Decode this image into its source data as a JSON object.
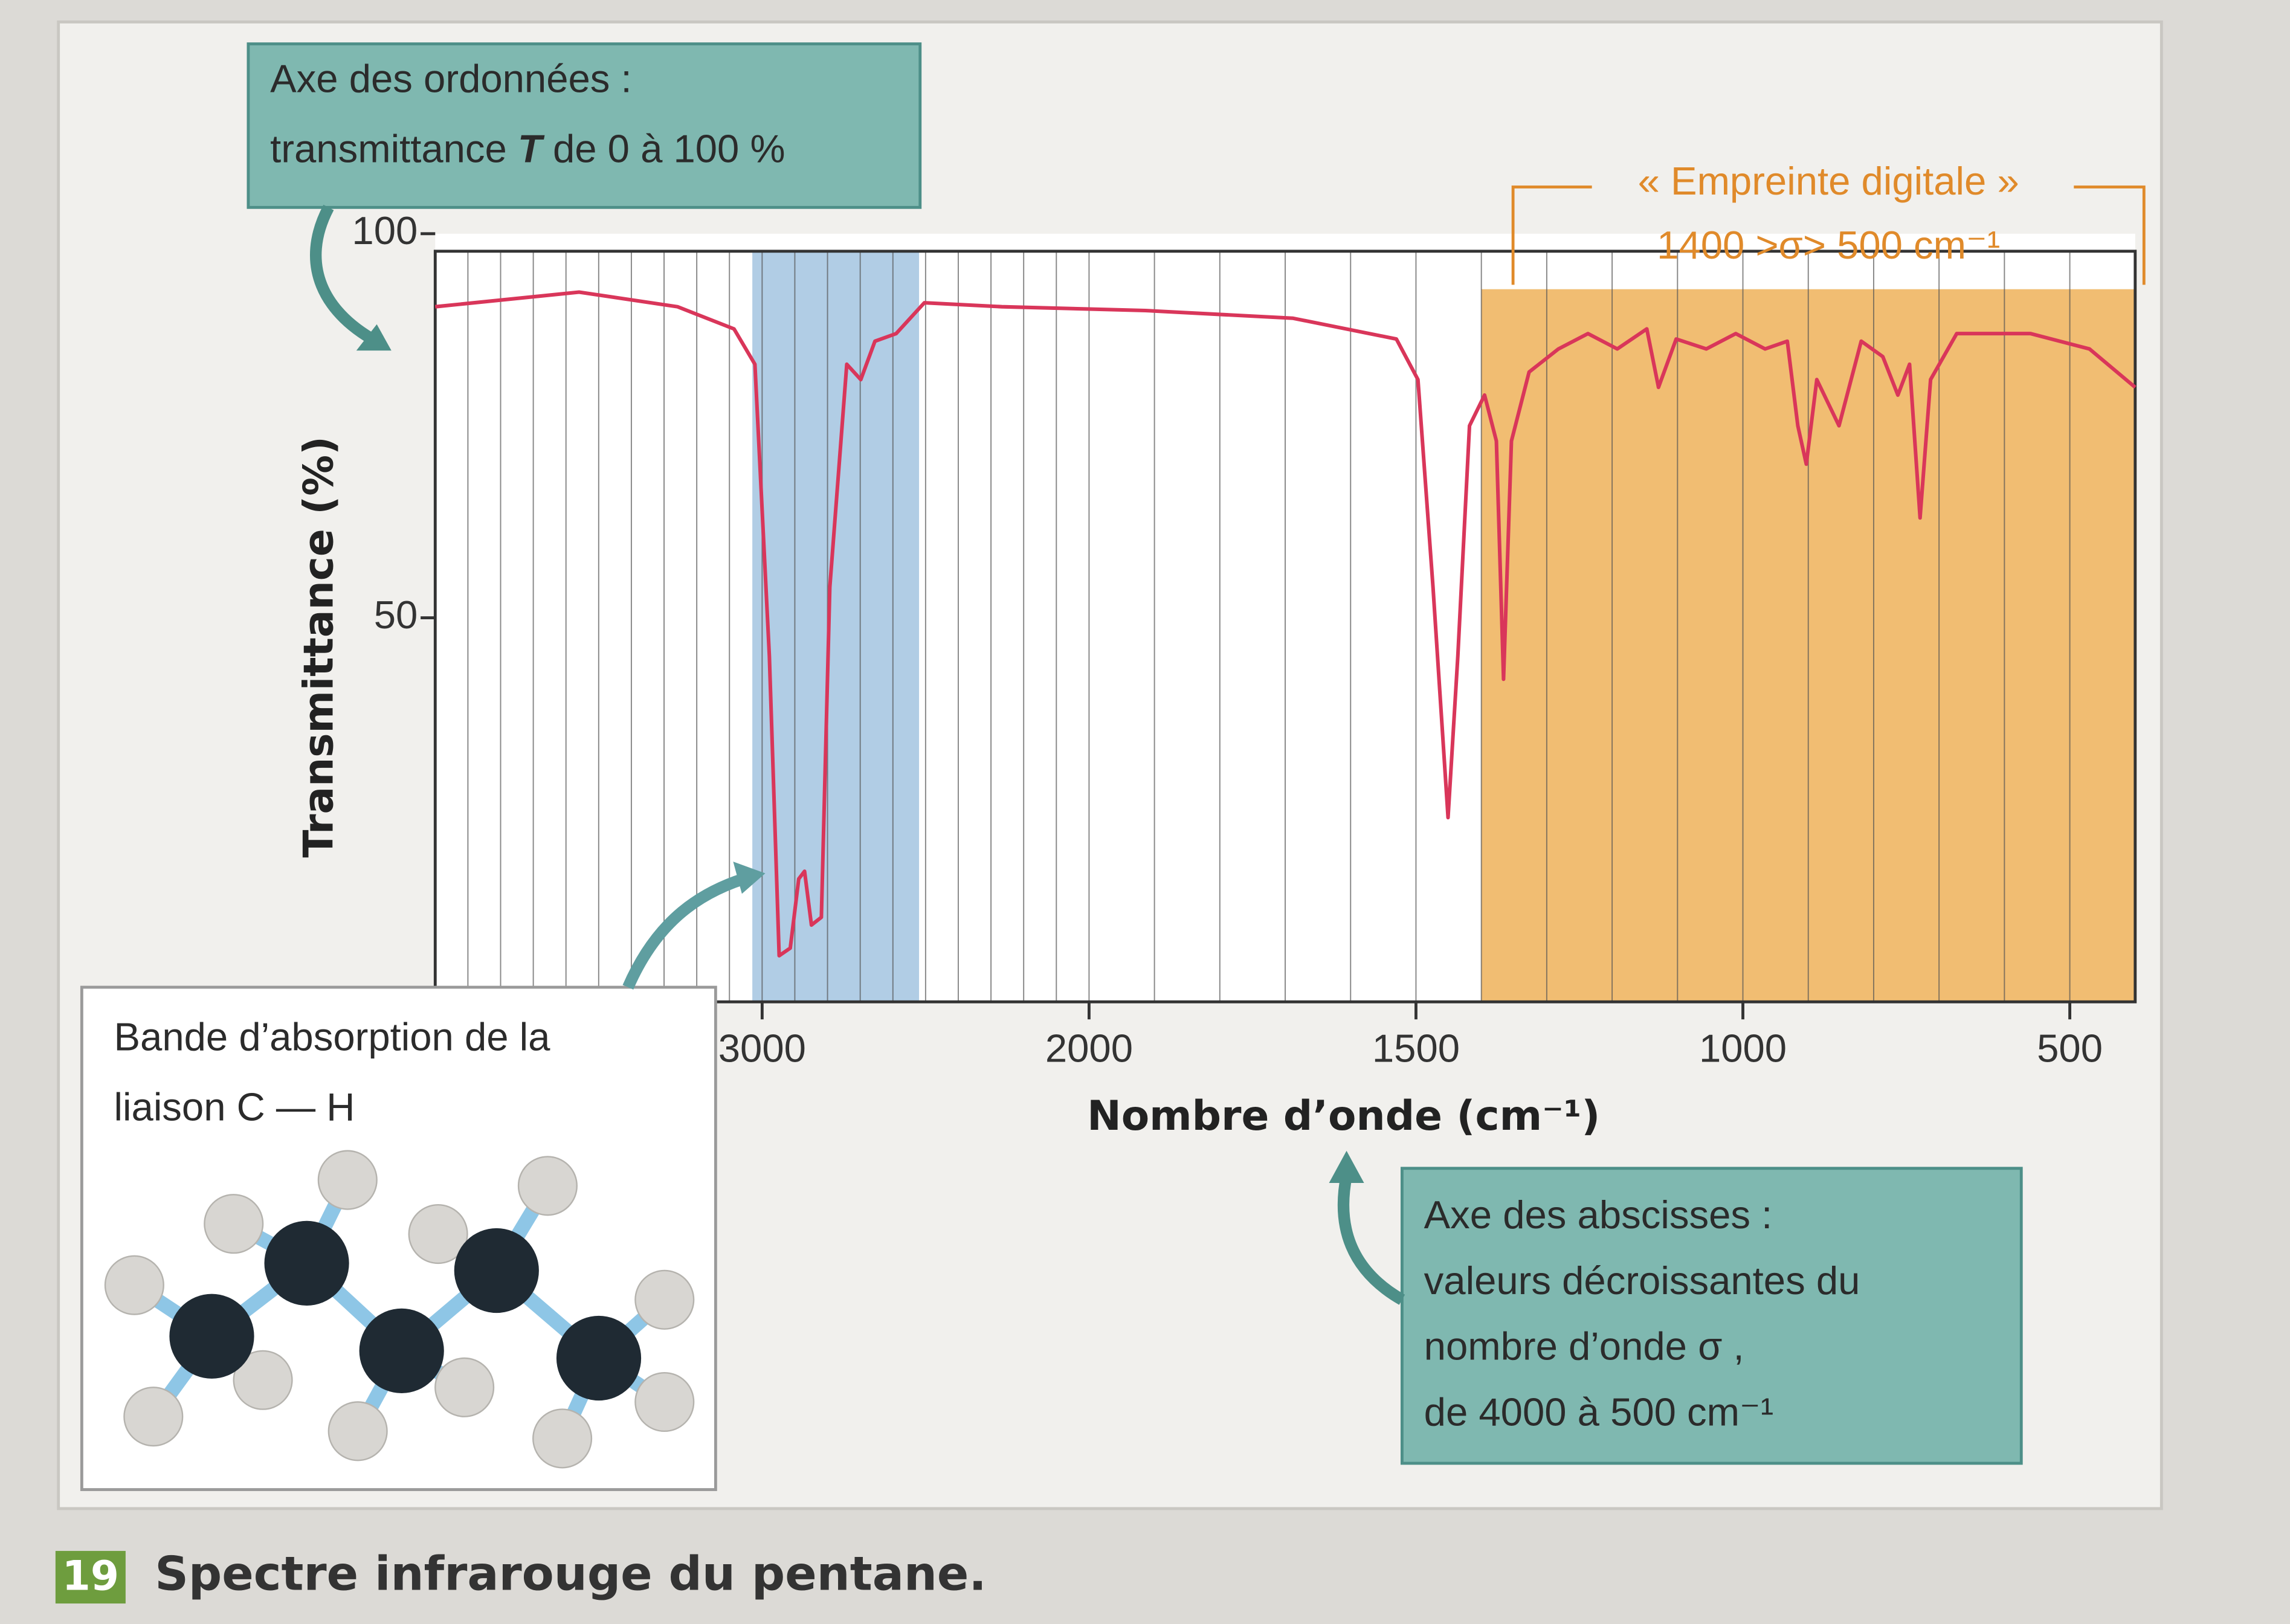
{
  "chart_data": {
    "type": "line",
    "title": "Spectre infrarouge du pentane.",
    "figure_number": "19",
    "x_label": "Nombre d’onde (cm⁻¹)",
    "y_label": "Transmittance (%)",
    "xlim": [
      4000,
      400
    ],
    "xscale": {
      "break": 2000,
      "expand": 2
    },
    "xticks": [
      3000,
      2000,
      1500,
      1000,
      500
    ],
    "xgrid": [
      3900,
      3800,
      3700,
      3600,
      3500,
      3400,
      3300,
      3200,
      3100,
      3000,
      2900,
      2800,
      2700,
      2600,
      2500,
      2400,
      2300,
      2200,
      2100,
      2000,
      1900,
      1800,
      1700,
      1600,
      1500,
      1400,
      1300,
      1200,
      1100,
      1000,
      900,
      800,
      700,
      600,
      500
    ],
    "ylim": [
      0,
      100
    ],
    "yticks": [
      50,
      100
    ],
    "color": "#d9365a",
    "bands": [
      {
        "from": 3030,
        "to": 2520,
        "color": "#a9c8e2"
      },
      {
        "from": 1400,
        "to": 400,
        "color": "#f0b96a"
      }
    ],
    "x": [
      4000,
      3560,
      3259,
      3086,
      3022,
      2978,
      2948,
      2914,
      2888,
      2870,
      2849,
      2819,
      2793,
      2741,
      2698,
      2655,
      2590,
      2504,
      2267,
      1914,
      1688,
      1530,
      1497,
      1474,
      1451,
      1436,
      1418,
      1395,
      1377,
      1366,
      1354,
      1327,
      1282,
      1237,
      1192,
      1147,
      1129,
      1102,
      1056,
      1011,
      966,
      932,
      916,
      903,
      887,
      853,
      819,
      786,
      763,
      745,
      729,
      713,
      673,
      560,
      470,
      400
    ],
    "values": [
      90.5,
      92.4,
      90.5,
      87.6,
      83,
      45,
      6,
      7,
      16,
      17,
      10,
      11,
      54,
      83,
      81,
      86,
      87,
      91,
      90.5,
      90,
      89,
      86.3,
      81,
      54,
      24,
      45,
      75,
      79,
      73,
      42,
      73,
      82,
      85,
      87,
      85,
      87.6,
      80,
      86.3,
      85,
      87,
      85,
      86,
      75,
      70,
      81,
      75,
      86,
      84,
      79,
      83,
      63,
      81,
      87,
      87,
      85,
      80
    ],
    "annotations": {
      "y_axis": {
        "line1": "Axe des ordonnées :",
        "line2_start": "transmittance ",
        "line2_symbol": "T",
        "line2_end": " de 0 à 100 %"
      },
      "fingerprint": {
        "line1": "« Empreinte digitale »",
        "line2": "1400 >σ> 500 cm⁻¹"
      },
      "band": {
        "line1": "Bande d’absorption de la",
        "line2": "liaison C — H"
      },
      "x_axis": {
        "line1": "Axe des abscisses :",
        "line2": "valeurs décroissantes du",
        "line3": "nombre d’onde σ ,",
        "line4": "de 4000 à 500 cm⁻¹"
      }
    }
  }
}
